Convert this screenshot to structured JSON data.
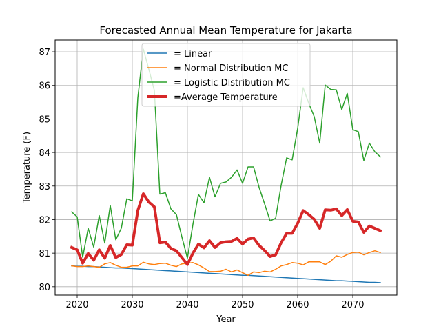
{
  "chart_data": {
    "type": "line",
    "title": "Forecasted Annual Mean Temperature for Jakarta",
    "xlabel": "Year",
    "ylabel": "Temperature (F)",
    "xlim": [
      2016,
      2078
    ],
    "ylim": [
      79.75,
      87.35
    ],
    "xticks": [
      2020,
      2030,
      2040,
      2050,
      2060,
      2070
    ],
    "yticks": [
      80,
      81,
      82,
      83,
      84,
      85,
      86,
      87
    ],
    "grid": true,
    "legend_position": "top-center",
    "x": [
      2019,
      2020,
      2021,
      2022,
      2023,
      2024,
      2025,
      2026,
      2027,
      2028,
      2029,
      2030,
      2031,
      2032,
      2033,
      2034,
      2035,
      2036,
      2037,
      2038,
      2039,
      2040,
      2041,
      2042,
      2043,
      2044,
      2045,
      2046,
      2047,
      2048,
      2049,
      2050,
      2051,
      2052,
      2053,
      2054,
      2055,
      2056,
      2057,
      2058,
      2059,
      2060,
      2061,
      2062,
      2063,
      2064,
      2065,
      2066,
      2067,
      2068,
      2069,
      2070,
      2071,
      2072,
      2073,
      2074,
      2075
    ],
    "series": [
      {
        "name": "= Linear",
        "color": "#1f77b4",
        "width": 1.5,
        "values": [
          80.62,
          80.61,
          80.61,
          80.6,
          80.6,
          80.59,
          80.58,
          80.57,
          80.56,
          80.56,
          80.55,
          80.54,
          80.53,
          80.52,
          80.51,
          80.5,
          80.49,
          80.48,
          80.47,
          80.46,
          80.45,
          80.44,
          80.43,
          80.42,
          80.41,
          80.4,
          80.39,
          80.38,
          80.37,
          80.36,
          80.35,
          80.34,
          80.34,
          80.33,
          80.32,
          80.31,
          80.3,
          80.29,
          80.28,
          80.27,
          80.26,
          80.25,
          80.24,
          80.23,
          80.22,
          80.21,
          80.2,
          80.19,
          80.18,
          80.18,
          80.17,
          80.16,
          80.15,
          80.14,
          80.13,
          80.13,
          80.12
        ]
      },
      {
        "name": "= Normal Distribution MC",
        "color": "#ff7f0e",
        "width": 1.5,
        "values": [
          80.62,
          80.6,
          80.6,
          80.62,
          80.6,
          80.58,
          80.68,
          80.72,
          80.64,
          80.58,
          80.58,
          80.62,
          80.62,
          80.73,
          80.68,
          80.66,
          80.69,
          80.7,
          80.64,
          80.6,
          80.68,
          80.7,
          80.72,
          80.65,
          80.56,
          80.45,
          80.45,
          80.46,
          80.52,
          80.44,
          80.5,
          80.42,
          80.34,
          80.44,
          80.42,
          80.46,
          80.44,
          80.52,
          80.62,
          80.66,
          80.72,
          80.7,
          80.65,
          80.74,
          80.74,
          80.74,
          80.66,
          80.76,
          80.92,
          80.88,
          80.96,
          81.02,
          81.03,
          80.95,
          81.02,
          81.07,
          81.02
        ]
      },
      {
        "name": "= Logistic Distribution MC",
        "color": "#2ca02c",
        "width": 1.5,
        "values": [
          82.23,
          82.08,
          80.88,
          81.74,
          81.18,
          82.12,
          81.3,
          82.42,
          81.4,
          81.74,
          82.62,
          82.56,
          85.63,
          87.08,
          86.48,
          85.85,
          82.76,
          82.8,
          82.32,
          82.15,
          81.48,
          80.85,
          81.86,
          82.75,
          82.5,
          83.26,
          82.68,
          83.08,
          83.12,
          83.26,
          83.48,
          83.08,
          83.57,
          83.57,
          82.96,
          82.47,
          81.96,
          82.04,
          83.02,
          83.84,
          83.78,
          84.72,
          85.93,
          85.47,
          85.07,
          84.28,
          86.01,
          85.88,
          85.87,
          85.28,
          85.76,
          84.68,
          84.62,
          83.76,
          84.28,
          84.02,
          83.87
        ]
      },
      {
        "name": "=Average Temperature",
        "color": "#d62728",
        "width": 4,
        "values": [
          81.17,
          81.1,
          80.7,
          80.99,
          80.79,
          81.1,
          80.85,
          81.23,
          80.87,
          80.96,
          81.25,
          81.24,
          82.27,
          82.77,
          82.52,
          82.38,
          81.31,
          81.33,
          81.14,
          81.07,
          80.87,
          80.66,
          81.0,
          81.27,
          81.16,
          81.37,
          81.17,
          81.31,
          81.34,
          81.35,
          81.44,
          81.27,
          81.42,
          81.45,
          81.23,
          81.08,
          80.9,
          80.95,
          81.31,
          81.59,
          81.59,
          81.89,
          82.27,
          82.15,
          82.01,
          81.74,
          82.29,
          82.28,
          82.32,
          82.12,
          82.3,
          81.95,
          81.93,
          81.62,
          81.81,
          81.74,
          81.67
        ]
      }
    ]
  }
}
